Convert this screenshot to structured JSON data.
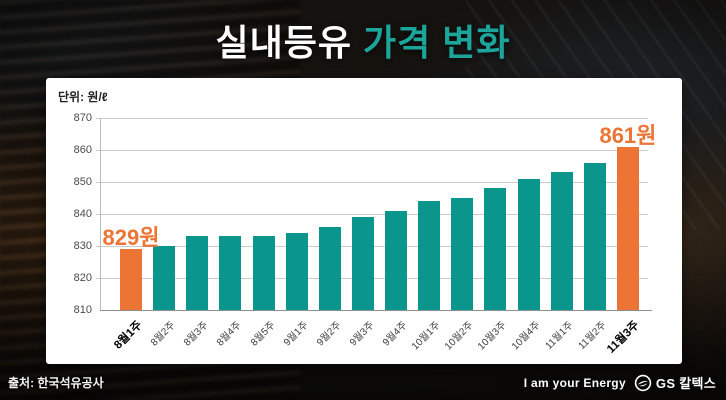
{
  "title": {
    "part1": "실내등유",
    "part2": "가격 변화"
  },
  "unit_label": "단위: 원/ℓ",
  "source": "출처: 한국석유공사",
  "footer": {
    "slogan": "I am your Energy",
    "brand": "GS 칼텍스",
    "logo": "gs-caltex-logo"
  },
  "colors": {
    "title_accent": "#1ca69b",
    "bar_teal": "#0a968d",
    "bar_orange": "#ec7434",
    "annotation_orange": "#ec7434",
    "gridline": "#cccccc",
    "panel_bg": "#ffffff"
  },
  "chart_data": {
    "type": "bar",
    "title": "실내등유 가격 변화",
    "unit": "원/ℓ",
    "categories": [
      "8월1주",
      "8월2주",
      "8월3주",
      "8월4주",
      "8월5주",
      "9월1주",
      "9월2주",
      "9월3주",
      "9월4주",
      "10월1주",
      "10월2주",
      "10월3주",
      "10월4주",
      "11월1주",
      "11월2주",
      "11월3주"
    ],
    "values": [
      829,
      830,
      833,
      833,
      833,
      834,
      836,
      839,
      841,
      844,
      845,
      848,
      851,
      853,
      856,
      861
    ],
    "ylim": [
      810,
      870
    ],
    "yticks": [
      810,
      820,
      830,
      840,
      850,
      860,
      870
    ],
    "grid": true,
    "legend": false,
    "highlight_indices": [
      0,
      15
    ],
    "annotations": [
      {
        "index": 0,
        "text": "829원"
      },
      {
        "index": 15,
        "text": "861원"
      }
    ]
  }
}
